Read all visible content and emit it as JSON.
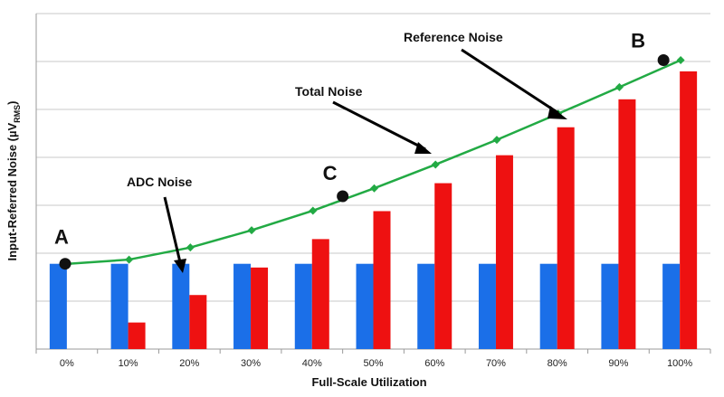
{
  "chart_data": {
    "type": "bar",
    "xlabel": "Full-Scale Utilization",
    "ylabel_main": "Input-Referred Noise (µV",
    "ylabel_sub": "RMS",
    "ylabel_close": ")",
    "categories": [
      "0%",
      "10%",
      "20%",
      "30%",
      "40%",
      "50%",
      "60%",
      "70%",
      "80%",
      "90%",
      "100%"
    ],
    "ylim": [
      0,
      7.2
    ],
    "grid": true,
    "series": [
      {
        "kind": "bar",
        "color": "#1b6fe8",
        "values": [
          1.83,
          1.83,
          1.83,
          1.83,
          1.83,
          1.83,
          1.83,
          1.83,
          1.83,
          1.83,
          1.83
        ]
      },
      {
        "kind": "bar",
        "color": "#ee1111",
        "values": [
          0,
          0.57,
          1.16,
          1.75,
          2.36,
          2.96,
          3.56,
          4.16,
          4.76,
          5.36,
          5.96
        ]
      },
      {
        "kind": "line",
        "color": "#22aa44",
        "values": [
          1.83,
          1.92,
          2.18,
          2.55,
          2.97,
          3.45,
          3.96,
          4.49,
          5.05,
          5.62,
          6.2
        ]
      }
    ],
    "annotations": [
      {
        "text": "ADC Noise",
        "type": "label"
      },
      {
        "text": "Total Noise",
        "type": "label"
      },
      {
        "text": "Reference Noise",
        "type": "label"
      }
    ],
    "points": [
      {
        "label": "A",
        "x_index": 0,
        "y": 1.83
      },
      {
        "label": "C",
        "x_index": 4.5,
        "y": 3.28
      },
      {
        "label": "B",
        "x_index": 10.5,
        "y": 6.2
      }
    ]
  }
}
